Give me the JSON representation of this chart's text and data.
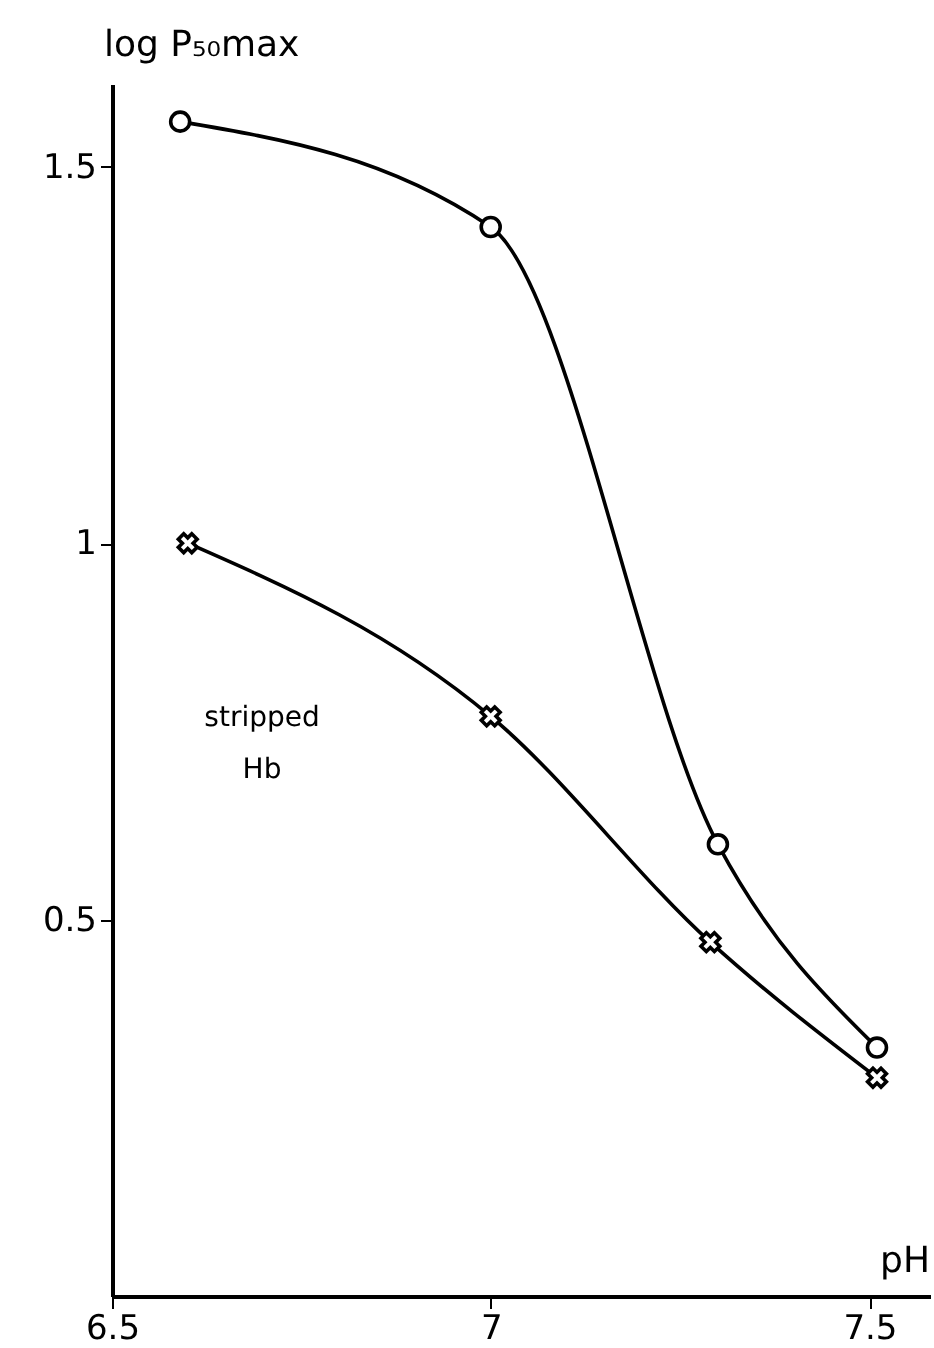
{
  "chart_data": {
    "type": "line",
    "xlabel": "pH",
    "ylabel": "log P₅₀max",
    "xlim": [
      6.5,
      7.58
    ],
    "xticks": [
      6.5,
      7,
      7.5
    ],
    "ylim": [
      0,
      1.61
    ],
    "yticks": [
      0.5,
      1,
      1.5
    ],
    "series": [
      {
        "color": "#000000",
        "marker": "circle",
        "x": [
          6.59,
          7.0,
          7.3,
          7.51
        ],
        "values": [
          1.56,
          1.42,
          0.6,
          0.33
        ]
      },
      {
        "color": "#000000",
        "marker": "cross",
        "x": [
          6.6,
          7.0,
          7.29,
          7.51
        ],
        "values": [
          1.0,
          0.77,
          0.47,
          0.29
        ]
      }
    ],
    "annotations": [
      "stripped Hb"
    ],
    "grid": false,
    "line_style": "solid"
  }
}
